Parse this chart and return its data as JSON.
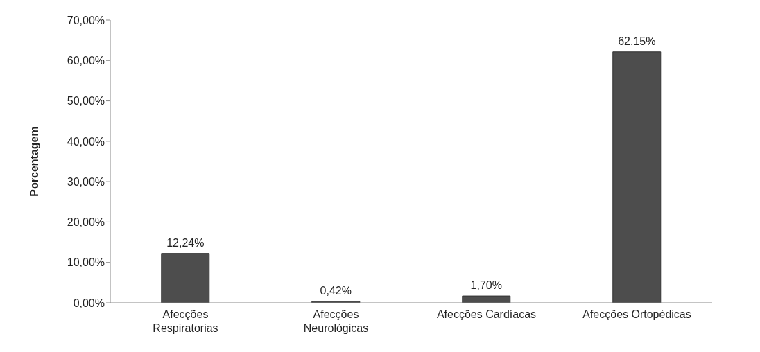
{
  "chart_data": {
    "type": "bar",
    "ylabel": "Porcentagem",
    "categories": [
      "Afecções Respiratorias",
      "Afecções Neurológicas",
      "Afecções Cardíacas",
      "Afecções Ortopédicas"
    ],
    "values": [
      12.24,
      0.42,
      1.7,
      62.15
    ],
    "color": "#4d4d4d",
    "value_labels": [
      "12,24%",
      "0,42%",
      "1,70%",
      "62,15%"
    ],
    "ylim": [
      0,
      70
    ],
    "yticks": [
      {
        "value": 0,
        "label": "0,00%"
      },
      {
        "value": 10,
        "label": "10,00%"
      },
      {
        "value": 20,
        "label": "20,00%"
      },
      {
        "value": 30,
        "label": "30,00%"
      },
      {
        "value": 40,
        "label": "40,00%"
      },
      {
        "value": 50,
        "label": "50,00%"
      },
      {
        "value": 60,
        "label": "60,00%"
      },
      {
        "value": 70,
        "label": "70,00%"
      }
    ],
    "grid": false,
    "legend": false
  }
}
